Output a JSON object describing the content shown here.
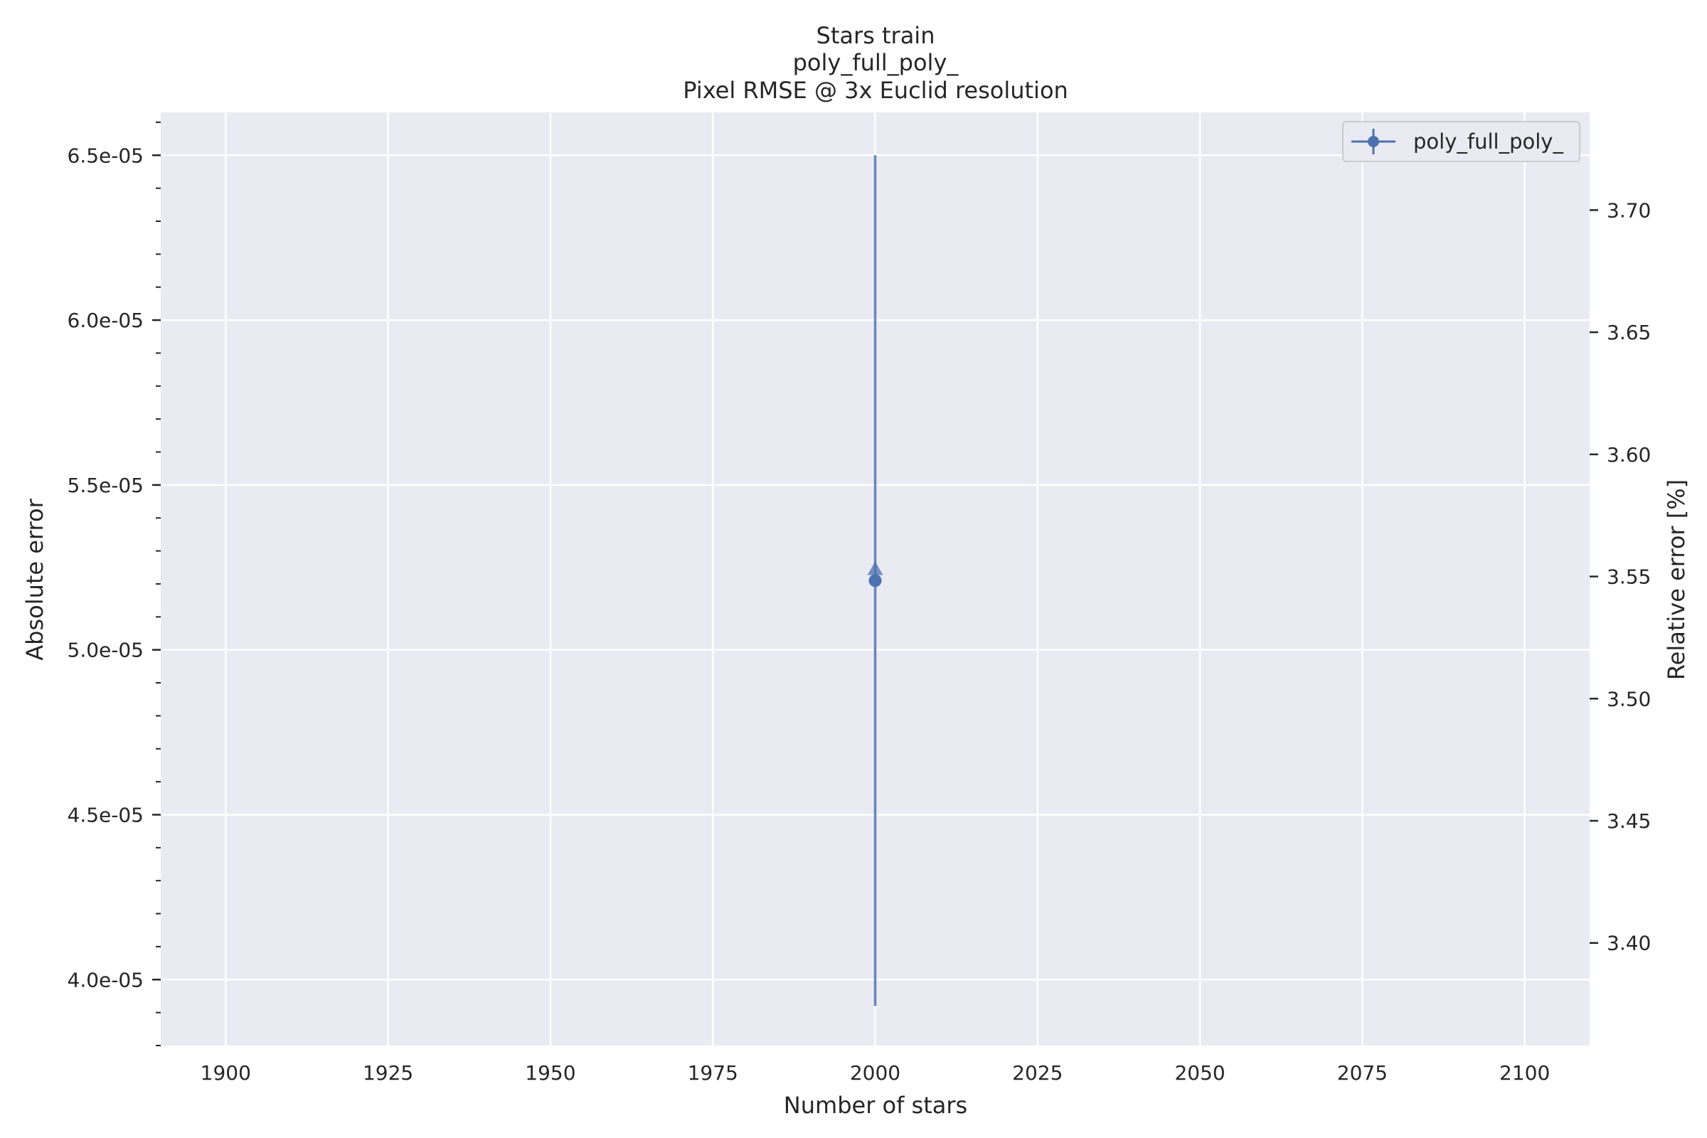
{
  "chart_data": {
    "type": "line",
    "title_lines": [
      "Stars train",
      "poly_full_poly_",
      "Pixel RMSE @ 3x Euclid resolution"
    ],
    "xlabel": "Number of stars",
    "ylabel": "Absolute error",
    "ylabel_right": "Relative error [%]",
    "xlim": [
      1890,
      2110
    ],
    "ylim": [
      3.8e-05,
      6.63e-05
    ],
    "ylim_right": [
      3.358,
      3.74
    ],
    "x_ticks": [
      1900,
      1925,
      1950,
      1975,
      2000,
      2025,
      2050,
      2075,
      2100
    ],
    "x_tick_labels": [
      "1900",
      "1925",
      "1950",
      "1975",
      "2000",
      "2025",
      "2050",
      "2075",
      "2100"
    ],
    "y_ticks": [
      4e-05,
      4.5e-05,
      5e-05,
      5.5e-05,
      6e-05,
      6.5e-05
    ],
    "y_tick_labels": [
      "4.0e-05",
      "4.5e-05",
      "5.0e-05",
      "5.5e-05",
      "6.0e-05",
      "6.5e-05"
    ],
    "y_minor_step": 1e-06,
    "y_right_ticks": [
      3.4,
      3.45,
      3.5,
      3.55,
      3.6,
      3.65,
      3.7
    ],
    "y_right_tick_labels": [
      "3.40",
      "3.45",
      "3.50",
      "3.55",
      "3.60",
      "3.65",
      "3.70"
    ],
    "grid": true,
    "legend_position": "top-right",
    "series": [
      {
        "name": "poly_full_poly_",
        "axis": "left",
        "marker": "circle",
        "color": "#4c72b0",
        "x": [
          2000
        ],
        "y": [
          5.21e-05
        ],
        "yerr": [
          1.29e-05
        ]
      },
      {
        "axis": "right",
        "marker": "triangle",
        "color": "#4c72b0",
        "x": [
          2000
        ],
        "y": [
          3.553
        ]
      }
    ],
    "colors": {
      "plot_background": "#eaeaf2",
      "grid": "#ffffff",
      "series": "#4c72b0"
    }
  }
}
